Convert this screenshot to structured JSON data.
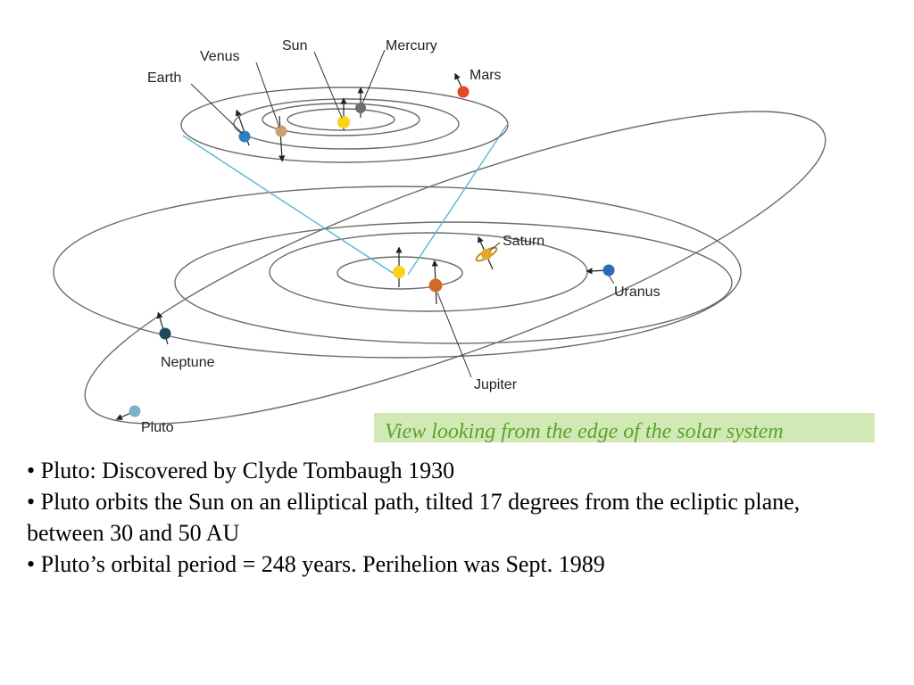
{
  "diagram": {
    "labels": {
      "venus": "Venus",
      "sun": "Sun",
      "mercury": "Mercury",
      "earth": "Earth",
      "mars": "Mars",
      "saturn": "Saturn",
      "uranus": "Uranus",
      "neptune": "Neptune",
      "jupiter": "Jupiter",
      "pluto": "Pluto"
    },
    "caption": "View looking from the edge of the solar system",
    "colors": {
      "sun": "#f7d417",
      "mercury": "#6f6f6f",
      "venus": "#c8a173",
      "earth": "#2e7ec1",
      "mars": "#e04a24",
      "jupiter": "#d26a25",
      "saturn": "#e0a827",
      "uranus": "#2a6db6",
      "neptune": "#1f4a5a",
      "pluto": "#7fb0c5",
      "cone": "#5ab7d3",
      "caption_bg": "#d3e9b5",
      "caption_text": "#58a32c"
    }
  },
  "bullets": [
    "• Pluto: Discovered by Clyde Tombaugh 1930",
    "• Pluto orbits the Sun on an elliptical path, tilted 17 degrees from the ecliptic plane, between 30 and 50 AU",
    "• Pluto’s orbital period = 248 years. Perihelion was Sept. 1989"
  ]
}
